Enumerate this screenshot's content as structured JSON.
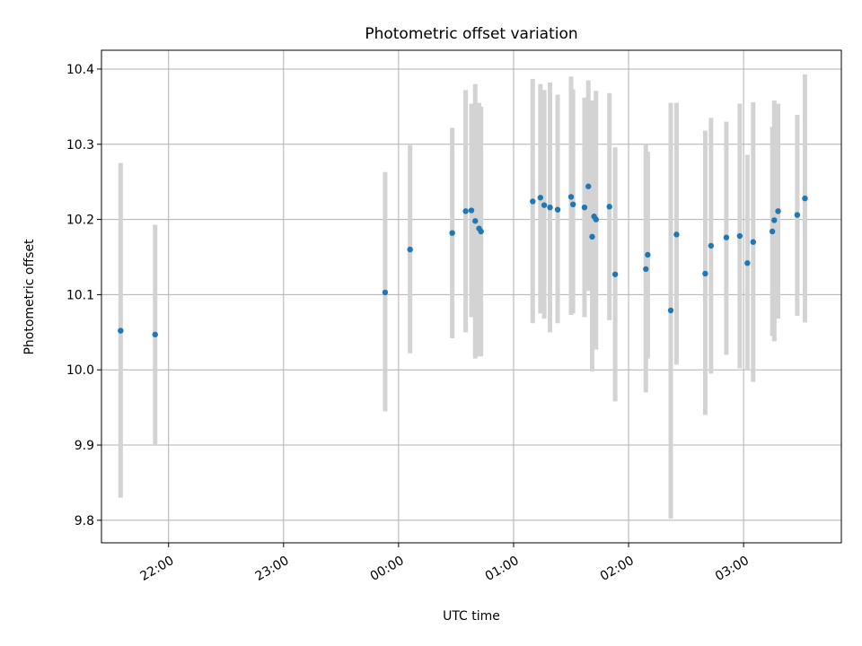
{
  "chart_data": {
    "type": "scatter",
    "title": "Photometric offset variation",
    "xlabel": "UTC time",
    "ylabel": "Photometric offset",
    "x_axis_type": "time",
    "xlim": [
      "21:25",
      "03:51"
    ],
    "ylim": [
      9.77,
      10.425
    ],
    "grid": true,
    "x_ticks": [
      {
        "value": "22:00",
        "label": "22:00"
      },
      {
        "value": "23:00",
        "label": "23:00"
      },
      {
        "value": "00:00",
        "label": "00:00"
      },
      {
        "value": "01:00",
        "label": "01:00"
      },
      {
        "value": "02:00",
        "label": "02:00"
      },
      {
        "value": "03:00",
        "label": "03:00"
      }
    ],
    "y_ticks": [
      {
        "value": 9.8,
        "label": "9.8"
      },
      {
        "value": 9.9,
        "label": "9.9"
      },
      {
        "value": 10.0,
        "label": "10.0"
      },
      {
        "value": 10.1,
        "label": "10.1"
      },
      {
        "value": 10.2,
        "label": "10.2"
      },
      {
        "value": 10.3,
        "label": "10.3"
      },
      {
        "value": 10.4,
        "label": "10.4"
      }
    ],
    "marker_color": "#1f77b4",
    "errorbar_color": "#d3d3d3",
    "points": [
      {
        "t": "21:35",
        "y": 10.052,
        "lo": 9.83,
        "hi": 10.275
      },
      {
        "t": "21:53",
        "y": 10.047,
        "lo": 9.9,
        "hi": 10.193
      },
      {
        "t": "23:53",
        "y": 10.103,
        "lo": 9.945,
        "hi": 10.263
      },
      {
        "t": "00:06",
        "y": 10.16,
        "lo": 10.022,
        "hi": 10.299
      },
      {
        "t": "00:28",
        "y": 10.182,
        "lo": 10.042,
        "hi": 10.322
      },
      {
        "t": "00:35",
        "y": 10.211,
        "lo": 10.05,
        "hi": 10.372
      },
      {
        "t": "00:38",
        "y": 10.212,
        "lo": 10.07,
        "hi": 10.354
      },
      {
        "t": "00:40",
        "y": 10.198,
        "lo": 10.015,
        "hi": 10.38
      },
      {
        "t": "00:42",
        "y": 10.188,
        "lo": 10.018,
        "hi": 10.355
      },
      {
        "t": "00:43",
        "y": 10.184,
        "lo": 10.018,
        "hi": 10.35
      },
      {
        "t": "01:10",
        "y": 10.224,
        "lo": 10.062,
        "hi": 10.387
      },
      {
        "t": "01:14",
        "y": 10.229,
        "lo": 10.075,
        "hi": 10.38
      },
      {
        "t": "01:16",
        "y": 10.219,
        "lo": 10.068,
        "hi": 10.372
      },
      {
        "t": "01:19",
        "y": 10.216,
        "lo": 10.05,
        "hi": 10.382
      },
      {
        "t": "01:23",
        "y": 10.213,
        "lo": 10.062,
        "hi": 10.366
      },
      {
        "t": "01:30",
        "y": 10.23,
        "lo": 10.073,
        "hi": 10.39
      },
      {
        "t": "01:31",
        "y": 10.22,
        "lo": 10.075,
        "hi": 10.373
      },
      {
        "t": "01:37",
        "y": 10.216,
        "lo": 10.07,
        "hi": 10.362
      },
      {
        "t": "01:39",
        "y": 10.244,
        "lo": 10.105,
        "hi": 10.385
      },
      {
        "t": "01:41",
        "y": 10.177,
        "lo": 9.998,
        "hi": 10.358
      },
      {
        "t": "01:42",
        "y": 10.204,
        "lo": 10.05,
        "hi": 10.358
      },
      {
        "t": "01:43",
        "y": 10.2,
        "lo": 10.027,
        "hi": 10.371
      },
      {
        "t": "01:50",
        "y": 10.217,
        "lo": 10.066,
        "hi": 10.368
      },
      {
        "t": "01:53",
        "y": 10.127,
        "lo": 9.958,
        "hi": 10.296
      },
      {
        "t": "02:09",
        "y": 10.134,
        "lo": 9.97,
        "hi": 10.3
      },
      {
        "t": "02:10",
        "y": 10.153,
        "lo": 10.015,
        "hi": 10.29
      },
      {
        "t": "02:22",
        "y": 10.079,
        "lo": 9.802,
        "hi": 10.355
      },
      {
        "t": "02:25",
        "y": 10.18,
        "lo": 10.007,
        "hi": 10.355
      },
      {
        "t": "02:40",
        "y": 10.128,
        "lo": 9.94,
        "hi": 10.318
      },
      {
        "t": "02:43",
        "y": 10.165,
        "lo": 9.995,
        "hi": 10.335
      },
      {
        "t": "02:51",
        "y": 10.176,
        "lo": 10.02,
        "hi": 10.33
      },
      {
        "t": "02:58",
        "y": 10.178,
        "lo": 10.002,
        "hi": 10.354
      },
      {
        "t": "03:02",
        "y": 10.142,
        "lo": 10.0,
        "hi": 10.286
      },
      {
        "t": "03:05",
        "y": 10.17,
        "lo": 9.984,
        "hi": 10.356
      },
      {
        "t": "03:15",
        "y": 10.184,
        "lo": 10.045,
        "hi": 10.323
      },
      {
        "t": "03:16",
        "y": 10.199,
        "lo": 10.038,
        "hi": 10.358
      },
      {
        "t": "03:18",
        "y": 10.211,
        "lo": 10.068,
        "hi": 10.354
      },
      {
        "t": "03:28",
        "y": 10.206,
        "lo": 10.072,
        "hi": 10.339
      },
      {
        "t": "03:32",
        "y": 10.228,
        "lo": 10.063,
        "hi": 10.393
      }
    ]
  }
}
